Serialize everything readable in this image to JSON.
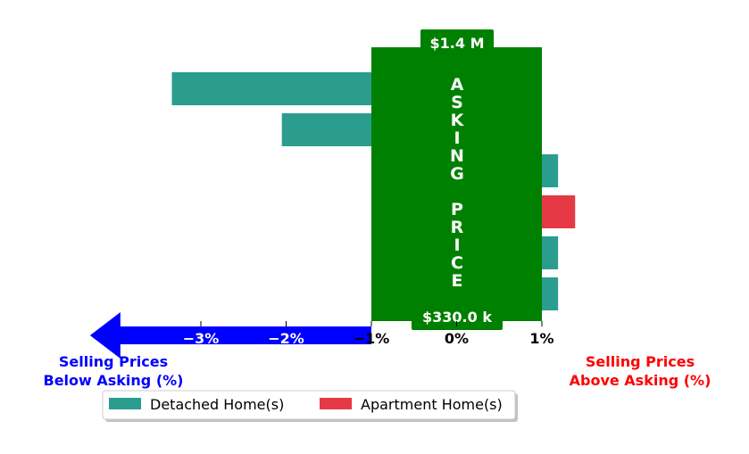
{
  "chart_data": {
    "type": "bar",
    "orientation": "horizontal",
    "x_ticks": [
      -3,
      -2,
      -1,
      0,
      1
    ],
    "x_tick_labels": [
      "−3%",
      "−2%",
      "−1%",
      "0%",
      "1%"
    ],
    "xlim": [
      -4.5,
      2.4
    ],
    "bars": [
      {
        "value": -3.34,
        "series": "Detached Home(s)"
      },
      {
        "value": -2.05,
        "series": "Detached Home(s)"
      },
      {
        "value": 1.19,
        "series": "Detached Home(s)"
      },
      {
        "value": 1.39,
        "series": "Apartment Home(s)"
      },
      {
        "value": 1.19,
        "series": "Detached Home(s)"
      },
      {
        "value": 1.19,
        "series": "Detached Home(s)"
      }
    ],
    "series": [
      {
        "name": "Detached Home(s)",
        "color": "#2a9d8f"
      },
      {
        "name": "Apartment Home(s)",
        "color": "#e63946"
      }
    ],
    "asking_price_box": {
      "range": [
        -1,
        1
      ],
      "color": "#008000",
      "vertical_text": "ASKING PRICE",
      "top_label": "$1.4 M",
      "bottom_label": "$330.0 k"
    },
    "left_arrow": {
      "color": "#0000ff",
      "from": -1,
      "to": -4.3
    },
    "left_label": [
      "Selling Prices",
      "Below Asking (%)"
    ],
    "right_label": [
      "Selling Prices",
      "Above Asking (%)"
    ],
    "left_label_color": "#0000ff",
    "right_label_color": "#ff0000",
    "legend": {
      "placement": "bottom-center"
    }
  }
}
